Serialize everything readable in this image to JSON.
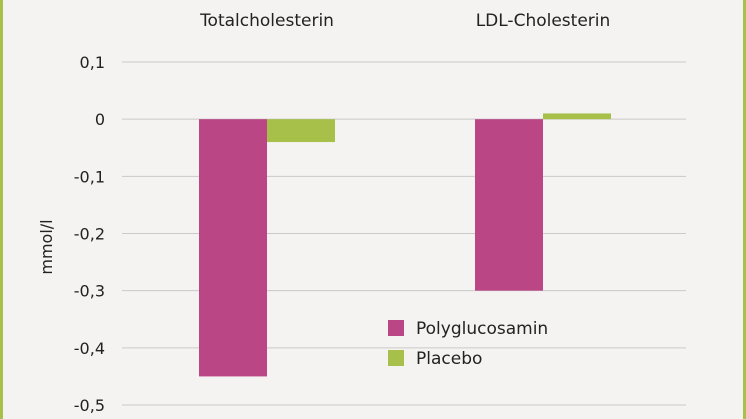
{
  "chart_data": {
    "type": "bar",
    "categories": [
      "Totalcholesterin",
      "LDL-Cholesterin"
    ],
    "series": [
      {
        "name": "Polyglucosamin",
        "color": "#bb4686",
        "values": [
          -0.45,
          -0.3
        ]
      },
      {
        "name": "Placebo",
        "color": "#a6c04a",
        "values": [
          -0.04,
          0.01
        ]
      }
    ],
    "ylabel": "mmol/l",
    "ylim": [
      -0.5,
      0.1
    ],
    "yticks": [
      0.1,
      0,
      -0.1,
      -0.2,
      -0.3,
      -0.4,
      -0.5
    ],
    "ytick_labels": [
      "0,1",
      "0",
      "-0,1",
      "-0,2",
      "-0,3",
      "-0,4",
      "-0,5"
    ],
    "category_position": "top",
    "grid": true,
    "legend_position": "lower-right"
  },
  "colors": {
    "frame": "#a6c04a",
    "grid": "#c9c9c9",
    "background": "#f4f3f1"
  }
}
